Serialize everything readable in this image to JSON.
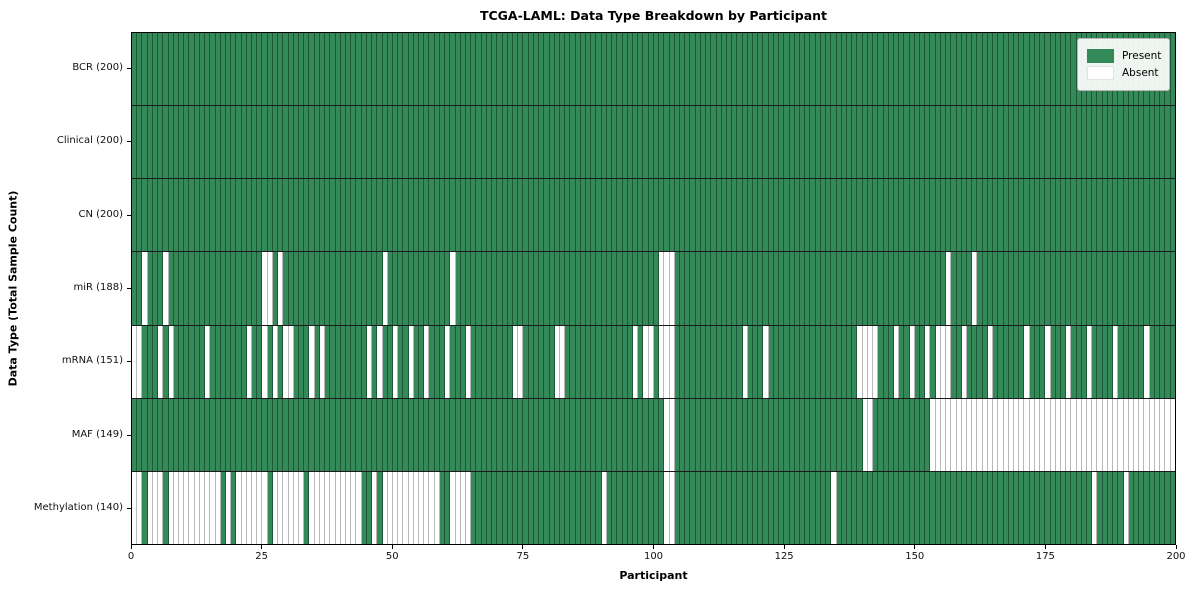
{
  "title": "TCGA-LAML: Data Type Breakdown by Participant",
  "legend": {
    "present_label": "Present",
    "absent_label": "Absent"
  },
  "colors": {
    "present": "#338a58",
    "absent": "#ffffff",
    "present_edge": "rgba(9,48,29,0.55)",
    "absent_edge": "#b8b8b8",
    "frame": "#000000"
  },
  "chart_data": {
    "type": "heatmap",
    "title": "TCGA-LAML: Data Type Breakdown by Participant",
    "xlabel": "Participant",
    "ylabel": "Data Type (Total Sample Count)",
    "x_range": [
      0,
      200
    ],
    "n_participants": 200,
    "x_ticks": [
      0,
      25,
      50,
      75,
      100,
      125,
      150,
      175,
      200
    ],
    "grid": "cell-edges",
    "legend_position": "upper right",
    "value_encoding": {
      "present": 1,
      "absent": 0
    },
    "rows": [
      {
        "label": "BCR (200)",
        "name": "BCR",
        "present_count": 200,
        "absent_participants": []
      },
      {
        "label": "Clinical (200)",
        "name": "Clinical",
        "present_count": 200,
        "absent_participants": []
      },
      {
        "label": "CN (200)",
        "name": "CN",
        "present_count": 200,
        "absent_participants": []
      },
      {
        "label": "miR (188)",
        "name": "miR",
        "present_count": 188,
        "absent_participants": [
          2,
          6,
          25,
          26,
          28,
          48,
          61,
          101,
          102,
          103,
          156,
          161
        ]
      },
      {
        "label": "mRNA (151)",
        "name": "mRNA",
        "present_count": 151,
        "absent_participants": [
          0,
          1,
          5,
          7,
          14,
          22,
          25,
          27,
          29,
          30,
          34,
          36,
          45,
          47,
          50,
          53,
          56,
          60,
          64,
          73,
          74,
          81,
          82,
          96,
          98,
          99,
          101,
          102,
          103,
          117,
          121,
          139,
          140,
          141,
          142,
          146,
          149,
          152,
          154,
          155,
          156,
          159,
          164,
          171,
          175,
          179,
          183,
          188,
          194
        ]
      },
      {
        "label": "MAF (149)",
        "name": "MAF",
        "present_count": 149,
        "absent_participants": [
          102,
          103,
          140,
          141,
          153,
          154,
          155,
          156,
          157,
          158,
          159,
          160,
          161,
          162,
          163,
          164,
          165,
          166,
          167,
          168,
          169,
          170,
          171,
          172,
          173,
          174,
          175,
          176,
          177,
          178,
          179,
          180,
          181,
          182,
          183,
          184,
          185,
          186,
          187,
          188,
          189,
          190,
          191,
          192,
          193,
          194,
          195,
          196,
          197,
          198,
          199
        ]
      },
      {
        "label": "Methylation (140)",
        "name": "Methylation",
        "present_count": 140,
        "absent_participants": [
          0,
          1,
          3,
          4,
          5,
          7,
          8,
          9,
          10,
          11,
          12,
          13,
          14,
          15,
          16,
          18,
          20,
          21,
          22,
          23,
          24,
          25,
          27,
          28,
          29,
          30,
          31,
          32,
          34,
          35,
          36,
          37,
          38,
          39,
          40,
          41,
          42,
          43,
          46,
          48,
          49,
          50,
          51,
          52,
          53,
          54,
          55,
          56,
          57,
          58,
          61,
          62,
          63,
          64,
          90,
          102,
          103,
          134,
          184,
          190
        ]
      }
    ]
  }
}
